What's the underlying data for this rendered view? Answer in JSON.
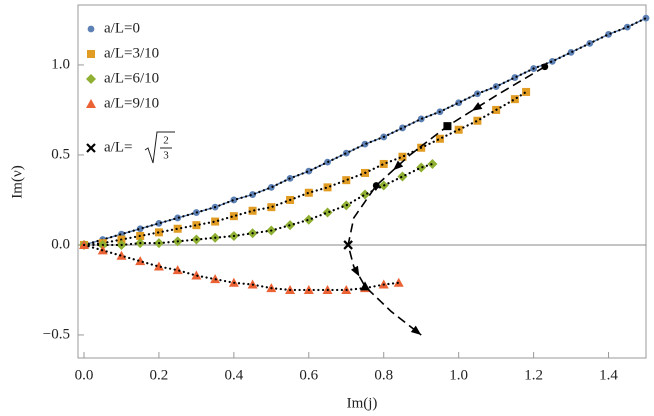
{
  "chart_data": {
    "type": "scatter",
    "x_label": "Im(j)",
    "y_label": "Im(ν)",
    "xlim": [
      -0.016,
      1.5
    ],
    "ylim": [
      -0.628,
      1.333
    ],
    "xticks": [
      {
        "value": 0,
        "label": "0.0"
      },
      {
        "value": 0.2,
        "label": "0.2"
      },
      {
        "value": 0.4,
        "label": "0.4"
      },
      {
        "value": 0.6,
        "label": "0.6"
      },
      {
        "value": 0.8,
        "label": "0.8"
      },
      {
        "value": 1,
        "label": "1.0"
      },
      {
        "value": 1.2,
        "label": "1.2"
      },
      {
        "value": 1.4,
        "label": "1.4"
      }
    ],
    "yticks": [
      {
        "value": -0.5,
        "label": "−0.5"
      },
      {
        "value": 0,
        "label": "0.0"
      },
      {
        "value": 0.5,
        "label": "0.5"
      },
      {
        "value": 1,
        "label": "1.0"
      }
    ],
    "zero_line": true,
    "series": [
      {
        "name": "a/L=0",
        "color": "#5e81b5",
        "marker": "circle",
        "joined": true,
        "x": [
          0,
          0.05,
          0.1,
          0.15,
          0.2,
          0.25,
          0.3,
          0.35,
          0.4,
          0.45,
          0.5,
          0.55,
          0.6,
          0.65,
          0.7,
          0.75,
          0.8,
          0.85,
          0.9,
          0.95,
          1,
          1.05,
          1.1,
          1.15,
          1.2,
          1.25,
          1.3,
          1.35,
          1.4,
          1.45,
          1.5
        ],
        "values": [
          0,
          0.03,
          0.06,
          0.09,
          0.12,
          0.15,
          0.18,
          0.21,
          0.25,
          0.28,
          0.32,
          0.37,
          0.41,
          0.46,
          0.51,
          0.56,
          0.6,
          0.65,
          0.7,
          0.74,
          0.79,
          0.84,
          0.88,
          0.93,
          0.98,
          1.02,
          1.07,
          1.12,
          1.17,
          1.21,
          1.26
        ]
      },
      {
        "name": "a/L=3/10",
        "color": "#e19c24",
        "marker": "square",
        "x": [
          0,
          0.05,
          0.1,
          0.15,
          0.2,
          0.25,
          0.3,
          0.35,
          0.4,
          0.45,
          0.5,
          0.55,
          0.6,
          0.65,
          0.7,
          0.75,
          0.8,
          0.85,
          0.9,
          0.95,
          1,
          1.05,
          1.1,
          1.15,
          1.18
        ],
        "values": [
          0,
          0.01,
          0.03,
          0.05,
          0.07,
          0.09,
          0.11,
          0.13,
          0.16,
          0.19,
          0.21,
          0.25,
          0.29,
          0.32,
          0.36,
          0.4,
          0.45,
          0.49,
          0.54,
          0.59,
          0.64,
          0.69,
          0.75,
          0.81,
          0.85
        ]
      },
      {
        "name": "a/L=6/10",
        "color": "#8fb032",
        "marker": "diamond",
        "x": [
          0,
          0.05,
          0.1,
          0.15,
          0.2,
          0.25,
          0.3,
          0.35,
          0.4,
          0.45,
          0.5,
          0.55,
          0.6,
          0.65,
          0.7,
          0.75,
          0.8,
          0.85,
          0.9,
          0.93
        ],
        "values": [
          0,
          0,
          0,
          0.01,
          0.01,
          0.02,
          0.03,
          0.04,
          0.05,
          0.065,
          0.08,
          0.11,
          0.14,
          0.18,
          0.22,
          0.28,
          0.33,
          0.38,
          0.43,
          0.45
        ]
      },
      {
        "name": "a/L=9/10",
        "color": "#eb6235",
        "marker": "triangle",
        "x": [
          0,
          0.05,
          0.1,
          0.15,
          0.2,
          0.25,
          0.3,
          0.35,
          0.4,
          0.45,
          0.5,
          0.55,
          0.6,
          0.65,
          0.7,
          0.75,
          0.8,
          0.84
        ],
        "values": [
          0,
          -0.03,
          -0.06,
          -0.09,
          -0.12,
          -0.14,
          -0.17,
          -0.19,
          -0.21,
          -0.22,
          -0.24,
          -0.25,
          -0.25,
          -0.25,
          -0.25,
          -0.24,
          -0.22,
          -0.21
        ]
      },
      {
        "name": "a/L=",
        "sqrt_numerator": "2",
        "sqrt_denominator": "3",
        "color": "#000000",
        "marker": "x",
        "x": [
          0.705
        ],
        "values": [
          0
        ]
      }
    ],
    "highlights": [
      {
        "x": 1.23,
        "y": 0.99,
        "marker": "circle"
      },
      {
        "x": 0.97,
        "y": 0.66,
        "marker": "square"
      },
      {
        "x": 0.78,
        "y": 0.33,
        "marker": "circle"
      },
      {
        "x": 0.75,
        "y": -0.23,
        "marker": "triangle"
      }
    ],
    "trajectory": {
      "x": [
        1.23,
        1.1,
        0.97,
        0.87,
        0.78,
        0.72,
        0.705,
        0.72,
        0.75,
        0.82,
        0.9
      ],
      "y": [
        0.99,
        0.83,
        0.66,
        0.5,
        0.33,
        0.15,
        0,
        -0.12,
        -0.23,
        -0.37,
        -0.5
      ]
    }
  }
}
